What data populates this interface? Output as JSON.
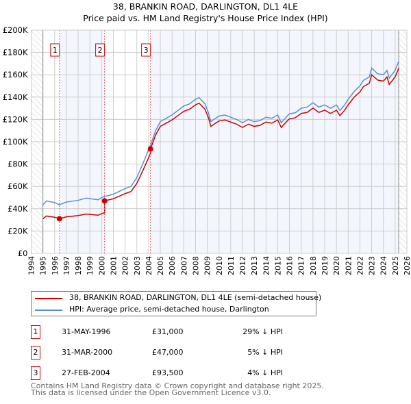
{
  "chart_data": {
    "type": "line",
    "title": "38, BRANKIN ROAD, DARLINGTON, DL1 4LE",
    "subtitle": "Price paid vs. HM Land Registry's House Price Index (HPI)",
    "xlim": [
      1994,
      2026
    ],
    "ylim": [
      0,
      200000
    ],
    "x_ticks": [
      "1994",
      "1995",
      "1996",
      "1997",
      "1998",
      "1999",
      "2000",
      "2001",
      "2002",
      "2003",
      "2004",
      "2005",
      "2006",
      "2007",
      "2008",
      "2009",
      "2010",
      "2011",
      "2012",
      "2013",
      "2014",
      "2015",
      "2016",
      "2017",
      "2018",
      "2019",
      "2020",
      "2021",
      "2022",
      "2023",
      "2024",
      "2025",
      "2026"
    ],
    "y_ticks": [
      "£0",
      "£20K",
      "£40K",
      "£60K",
      "£80K",
      "£100K",
      "£120K",
      "£140K",
      "£160K",
      "£180K",
      "£200K"
    ],
    "grid": true,
    "colors": {
      "property": "#cc0000",
      "hpi": "#5b8fd4"
    },
    "hpi": {
      "x": [
        1995.0,
        1995.3,
        1996.0,
        1996.4,
        1997.0,
        1998.0,
        1998.7,
        1999.0,
        1999.7,
        2000.1,
        2001.0,
        2002.0,
        2002.5,
        2003.0,
        2003.5,
        2004.2,
        2004.6,
        2005.0,
        2005.5,
        2006.0,
        2006.5,
        2007.0,
        2007.5,
        2008.0,
        2008.3,
        2008.8,
        2009.1,
        2009.3,
        2009.7,
        2010.0,
        2010.5,
        2011.0,
        2011.5,
        2012.0,
        2012.5,
        2013.0,
        2013.5,
        2014.0,
        2014.5,
        2015.0,
        2015.3,
        2015.8,
        2016.0,
        2016.5,
        2017.0,
        2017.5,
        2018.0,
        2018.5,
        2019.0,
        2019.5,
        2020.0,
        2020.3,
        2020.7,
        2021.0,
        2021.5,
        2022.0,
        2022.3,
        2022.8,
        2023.0,
        2023.5,
        2024.0,
        2024.3,
        2024.5,
        2025.0,
        2025.3
      ],
      "y": [
        43500,
        47000,
        45500,
        43500,
        46000,
        47500,
        49500,
        49000,
        48000,
        50500,
        53000,
        58000,
        60000,
        68000,
        80000,
        98000,
        110000,
        118000,
        121000,
        124000,
        128000,
        132000,
        134000,
        138000,
        139500,
        134000,
        126000,
        118000,
        121000,
        123000,
        124000,
        122000,
        120000,
        117000,
        120000,
        118000,
        119000,
        122000,
        121000,
        124000,
        117000,
        123000,
        125000,
        126000,
        130000,
        131000,
        135000,
        131000,
        133000,
        130000,
        133000,
        128000,
        133000,
        138000,
        145000,
        150000,
        155000,
        158000,
        166000,
        161000,
        160000,
        164000,
        157000,
        164000,
        172000
      ]
    },
    "sales": [
      {
        "label": "1",
        "x": 1996.41,
        "price": 31000
      },
      {
        "label": "2",
        "x": 2000.25,
        "price": 47000
      },
      {
        "label": "3",
        "x": 2004.16,
        "price": 93500
      }
    ],
    "legend": [
      "38, BRANKIN ROAD, DARLINGTON, DL1 4LE (semi-detached house)",
      "HPI: Average price, semi-detached house, Darlington"
    ]
  },
  "table": [
    {
      "n": "1",
      "date": "31-MAY-1996",
      "price": "£31,000",
      "hpi": "29% ↓ HPI"
    },
    {
      "n": "2",
      "date": "31-MAR-2000",
      "price": "£47,000",
      "hpi": "5% ↓ HPI"
    },
    {
      "n": "3",
      "date": "27-FEB-2004",
      "price": "£93,500",
      "hpi": "4% ↓ HPI"
    }
  ],
  "footer": [
    "Contains HM Land Registry data © Crown copyright and database right 2025.",
    "This data is licensed under the Open Government Licence v3.0."
  ]
}
